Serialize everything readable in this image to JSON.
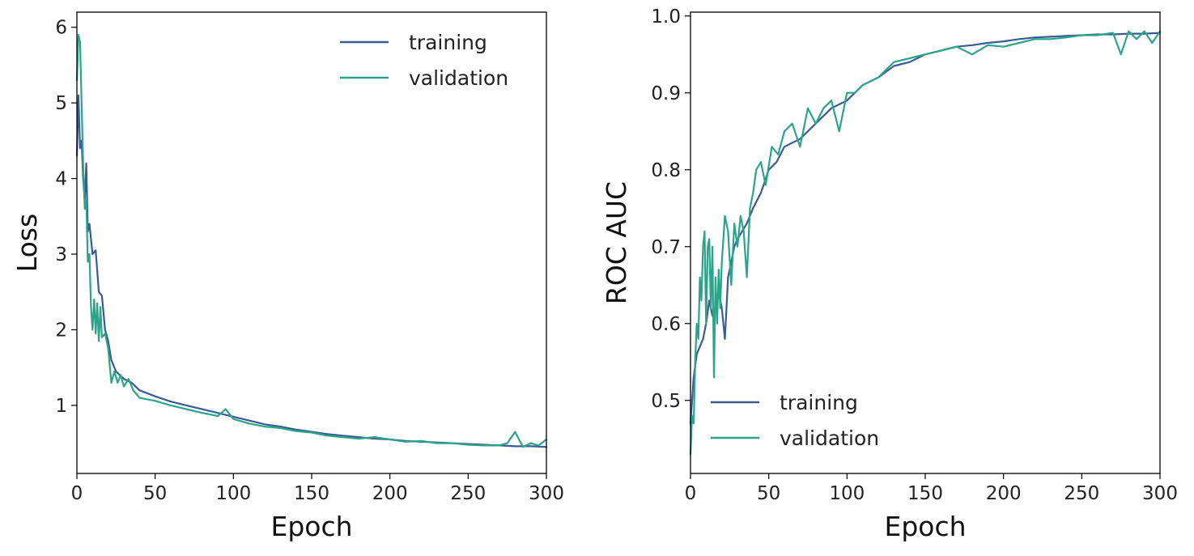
{
  "chart_data": [
    {
      "type": "line",
      "title": "",
      "xlabel": "Epoch",
      "ylabel": "Loss",
      "xlim": [
        0,
        300
      ],
      "ylim": [
        0.1,
        6.2
      ],
      "xticks": [
        "0",
        "50",
        "100",
        "150",
        "200",
        "250",
        "300"
      ],
      "yticks": [
        "1",
        "2",
        "3",
        "4",
        "5",
        "6"
      ],
      "grid": false,
      "legend_position": "top-right",
      "series": [
        {
          "name": "training",
          "color": "#3b5b92",
          "x": [
            0,
            1,
            2,
            3,
            4,
            5,
            6,
            7,
            8,
            10,
            12,
            14,
            16,
            18,
            20,
            22,
            25,
            30,
            35,
            40,
            50,
            60,
            70,
            80,
            90,
            100,
            110,
            120,
            130,
            140,
            150,
            160,
            170,
            180,
            190,
            200,
            210,
            220,
            230,
            240,
            250,
            260,
            270,
            280,
            290,
            300
          ],
          "y": [
            4.3,
            5.1,
            4.4,
            4.5,
            4.0,
            3.7,
            4.2,
            3.3,
            3.4,
            3.0,
            3.05,
            2.5,
            2.45,
            2.0,
            1.85,
            1.6,
            1.45,
            1.35,
            1.3,
            1.2,
            1.12,
            1.05,
            1.0,
            0.95,
            0.9,
            0.85,
            0.8,
            0.75,
            0.72,
            0.68,
            0.65,
            0.62,
            0.6,
            0.58,
            0.56,
            0.55,
            0.53,
            0.52,
            0.51,
            0.5,
            0.49,
            0.48,
            0.47,
            0.46,
            0.46,
            0.45
          ]
        },
        {
          "name": "validation",
          "color": "#2aa58a",
          "x": [
            0,
            1,
            2,
            3,
            4,
            5,
            6,
            7,
            8,
            9,
            10,
            11,
            12,
            13,
            14,
            15,
            16,
            18,
            20,
            22,
            24,
            26,
            28,
            30,
            33,
            36,
            40,
            50,
            60,
            70,
            80,
            90,
            95,
            100,
            110,
            120,
            130,
            140,
            150,
            160,
            170,
            180,
            190,
            200,
            210,
            220,
            230,
            240,
            250,
            260,
            270,
            275,
            280,
            285,
            290,
            295,
            300
          ],
          "y": [
            5.3,
            5.9,
            5.8,
            5.0,
            4.2,
            3.6,
            3.7,
            2.9,
            3.0,
            2.3,
            2.0,
            2.4,
            1.95,
            2.35,
            1.85,
            2.3,
            1.9,
            1.95,
            1.75,
            1.3,
            1.45,
            1.3,
            1.4,
            1.25,
            1.35,
            1.2,
            1.1,
            1.06,
            1.0,
            0.95,
            0.9,
            0.86,
            0.95,
            0.82,
            0.76,
            0.72,
            0.7,
            0.66,
            0.64,
            0.6,
            0.58,
            0.56,
            0.58,
            0.55,
            0.52,
            0.53,
            0.5,
            0.5,
            0.48,
            0.47,
            0.47,
            0.5,
            0.65,
            0.45,
            0.5,
            0.47,
            0.55
          ]
        }
      ]
    },
    {
      "type": "line",
      "title": "",
      "xlabel": "Epoch",
      "ylabel": "ROC AUC",
      "xlim": [
        0,
        300
      ],
      "ylim": [
        0.405,
        1.005
      ],
      "xticks": [
        "0",
        "50",
        "100",
        "150",
        "200",
        "250",
        "300"
      ],
      "yticks": [
        "0.5",
        "0.6",
        "0.7",
        "0.8",
        "0.9",
        "1.0"
      ],
      "grid": false,
      "legend_position": "bottom-left",
      "series": [
        {
          "name": "training",
          "color": "#3b5b92",
          "x": [
            0,
            2,
            4,
            6,
            8,
            10,
            12,
            14,
            16,
            18,
            20,
            22,
            24,
            26,
            28,
            30,
            33,
            36,
            40,
            45,
            50,
            55,
            60,
            70,
            80,
            90,
            100,
            110,
            120,
            130,
            140,
            150,
            160,
            170,
            180,
            190,
            200,
            210,
            220,
            230,
            240,
            250,
            260,
            270,
            280,
            290,
            300
          ],
          "y": [
            0.47,
            0.53,
            0.56,
            0.57,
            0.58,
            0.6,
            0.63,
            0.61,
            0.62,
            0.64,
            0.62,
            0.58,
            0.66,
            0.68,
            0.7,
            0.71,
            0.72,
            0.73,
            0.75,
            0.77,
            0.8,
            0.81,
            0.83,
            0.84,
            0.86,
            0.88,
            0.89,
            0.91,
            0.92,
            0.935,
            0.94,
            0.95,
            0.955,
            0.96,
            0.962,
            0.965,
            0.967,
            0.97,
            0.972,
            0.973,
            0.974,
            0.975,
            0.976,
            0.976,
            0.977,
            0.977,
            0.978
          ]
        },
        {
          "name": "validation",
          "color": "#2aa58a",
          "x": [
            0,
            1,
            2,
            3,
            4,
            5,
            6,
            7,
            8,
            9,
            10,
            11,
            12,
            13,
            14,
            15,
            16,
            17,
            18,
            19,
            20,
            22,
            24,
            26,
            28,
            30,
            32,
            34,
            36,
            38,
            40,
            42,
            45,
            48,
            52,
            56,
            60,
            65,
            70,
            75,
            80,
            85,
            90,
            95,
            100,
            105,
            110,
            120,
            130,
            140,
            150,
            160,
            170,
            180,
            190,
            200,
            210,
            220,
            230,
            240,
            250,
            260,
            270,
            275,
            280,
            285,
            290,
            295,
            300
          ],
          "y": [
            0.43,
            0.48,
            0.47,
            0.55,
            0.6,
            0.58,
            0.66,
            0.63,
            0.7,
            0.72,
            0.6,
            0.7,
            0.71,
            0.62,
            0.7,
            0.53,
            0.66,
            0.6,
            0.67,
            0.62,
            0.68,
            0.74,
            0.72,
            0.65,
            0.73,
            0.7,
            0.74,
            0.72,
            0.66,
            0.75,
            0.77,
            0.8,
            0.81,
            0.78,
            0.83,
            0.82,
            0.85,
            0.86,
            0.83,
            0.88,
            0.86,
            0.88,
            0.89,
            0.85,
            0.9,
            0.9,
            0.91,
            0.92,
            0.94,
            0.945,
            0.95,
            0.955,
            0.96,
            0.95,
            0.962,
            0.96,
            0.965,
            0.97,
            0.97,
            0.972,
            0.975,
            0.975,
            0.978,
            0.95,
            0.98,
            0.97,
            0.98,
            0.965,
            0.98
          ]
        }
      ]
    }
  ]
}
